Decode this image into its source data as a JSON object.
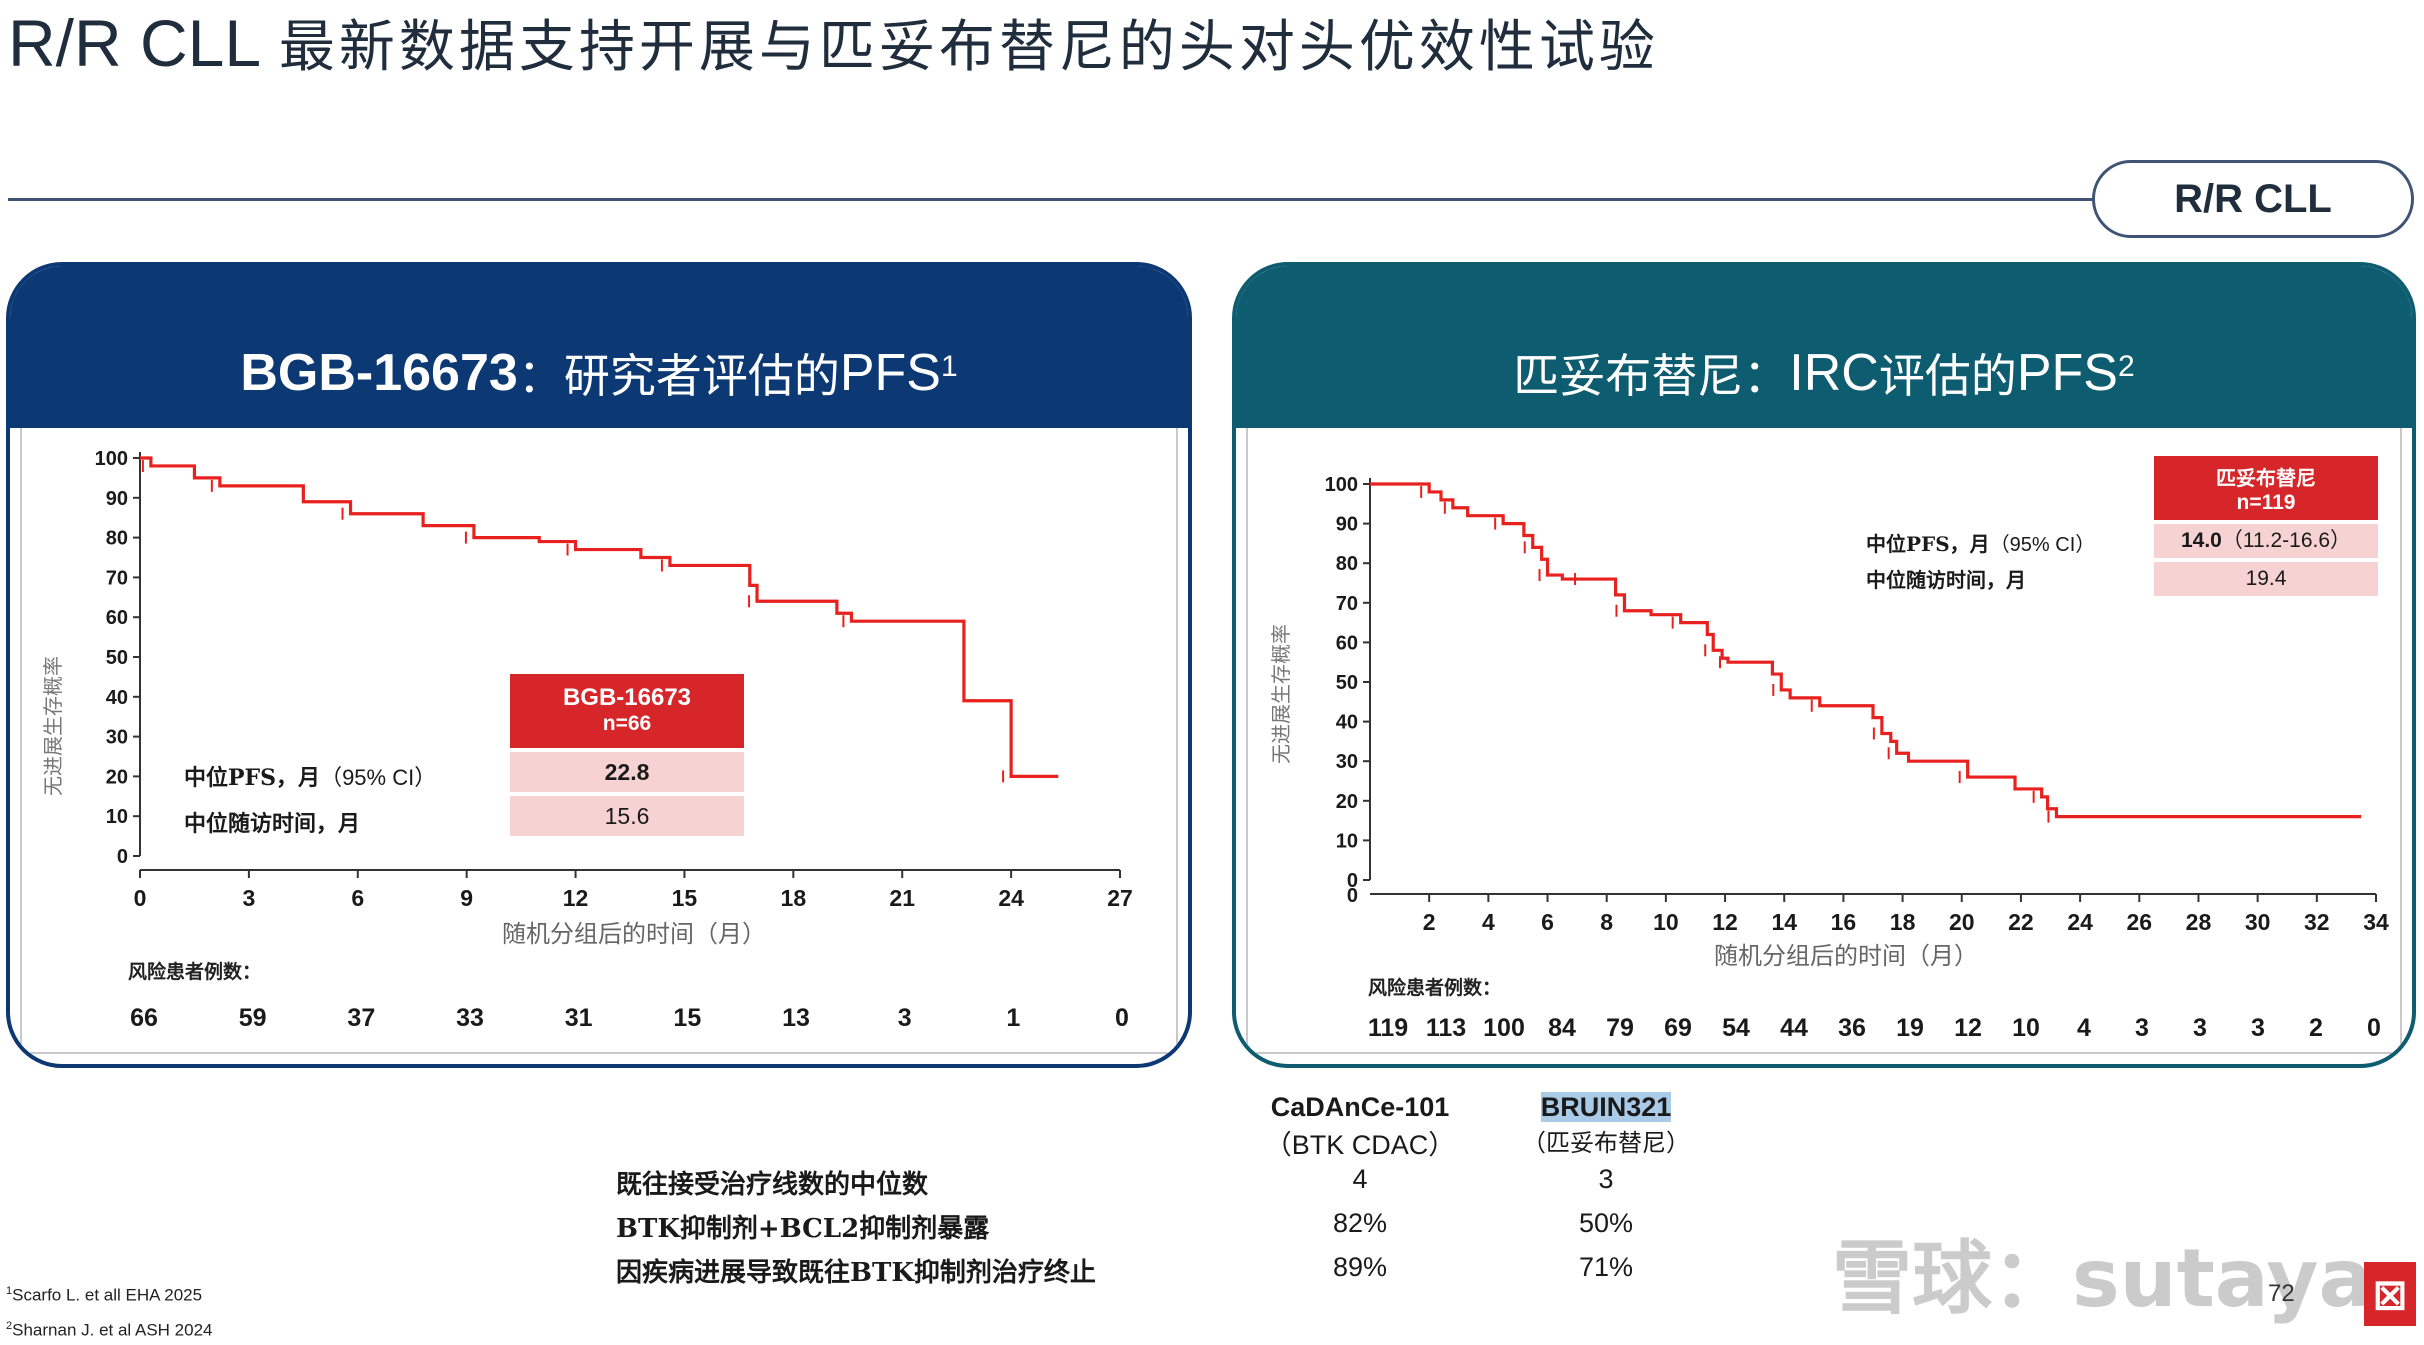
{
  "title": {
    "en": "R/R CLL",
    "zh": "最新数据支持开展与匹妥布替尼的头对头优效性试验"
  },
  "tag": "R/R CLL",
  "left_panel": {
    "heading_bold": "BGB-16673",
    "heading_sep": "：",
    "heading_zh": "研究者评估的",
    "heading_pfs": "PFS",
    "heading_sup": "1",
    "table_header_line1": "BGB-16673",
    "table_header_line2": "n=66",
    "row1_label_zh": "中位PFS，月",
    "row1_label_ci": "（95% CI）",
    "row1_value": "22.8",
    "row2_label": "中位随访时间，月",
    "row2_value": "15.6",
    "risk_label": "风险患者例数：",
    "risk_values": [
      "66",
      "59",
      "37",
      "33",
      "31",
      "15",
      "13",
      "3",
      "1",
      "0"
    ]
  },
  "right_panel": {
    "heading_zh": "匹妥布替尼",
    "heading_sep": "：",
    "heading_irc": "IRC",
    "heading_zh2": "评估的",
    "heading_pfs": "PFS",
    "heading_sup": "2",
    "table_header_line1": "匹妥布替尼",
    "table_header_line2": "n=119",
    "row1_label_zh": "中位PFS，月",
    "row1_label_ci": "（95% CI）",
    "row1_value_bold": "14.0",
    "row1_value_ci": "（11.2-16.6）",
    "row2_label": "中位随访时间，月",
    "row2_value": "19.4",
    "risk_label": "风险患者例数：",
    "risk_values": [
      "119",
      "113",
      "100",
      "84",
      "79",
      "69",
      "54",
      "44",
      "36",
      "19",
      "12",
      "10",
      "4",
      "3",
      "3",
      "3",
      "2",
      "0"
    ]
  },
  "comparison": {
    "col1_name": "CaDAnCe-101",
    "col1_sub": "（BTK CDAC）",
    "col2_name": "BRUIN321",
    "col2_sub": "（匹妥布替尼）",
    "rows": [
      {
        "label": "既往接受治疗线数的中位数",
        "v1": "4",
        "v2": "3"
      },
      {
        "label": "BTK抑制剂+BCL2抑制剂暴露",
        "v1": "82%",
        "v2": "50%"
      },
      {
        "label": "因疾病进展导致既往BTK抑制剂治疗终止",
        "v1": "89%",
        "v2": "71%"
      }
    ]
  },
  "references": {
    "ref1_sup": "1",
    "ref1": "Scarfo L. et all EHA 2025",
    "ref2_sup": "2",
    "ref2": "Sharnan J. et al ASH 2024"
  },
  "page_number": "72",
  "watermark": "雪球：sutaya",
  "colors": {
    "navy": "#0c3873",
    "teal": "#0e5c70",
    "curve_red": "#e8211e",
    "table_red": "#d6262a",
    "table_pink": "#f7d2d3",
    "rule": "#3f5475"
  },
  "chart_data": [
    {
      "type": "line",
      "step": true,
      "title": "BGB-16673：研究者评估的PFS",
      "xlabel": "随机分组后的时间（月）",
      "ylabel": "无进展生存概率",
      "xlim": [
        0,
        27
      ],
      "ylim": [
        0,
        100
      ],
      "x_ticks": [
        0,
        3,
        6,
        9,
        12,
        15,
        18,
        21,
        24,
        27
      ],
      "y_ticks": [
        0,
        10,
        20,
        30,
        40,
        50,
        60,
        70,
        80,
        90,
        100
      ],
      "grid": false,
      "series": [
        {
          "name": "BGB-16673",
          "x": [
            0,
            0.3,
            1.5,
            2.2,
            4.5,
            5.8,
            7.8,
            9.2,
            11.0,
            12.0,
            13.8,
            14.6,
            16.8,
            17.0,
            19.2,
            19.6,
            22.7,
            24.0,
            25.3
          ],
          "y": [
            100,
            98,
            95,
            93,
            89,
            86,
            83,
            80,
            79,
            77,
            75,
            73,
            68,
            64,
            61,
            59,
            39,
            20,
            20
          ]
        }
      ]
    },
    {
      "type": "line",
      "step": true,
      "title": "匹妥布替尼：IRC评估的PFS",
      "xlabel": "随机分组后的时间（月）",
      "ylabel": "无进展生存概率",
      "xlim": [
        0,
        34
      ],
      "ylim": [
        0,
        100
      ],
      "x_ticks": [
        2,
        4,
        6,
        8,
        10,
        12,
        14,
        16,
        18,
        20,
        22,
        24,
        26,
        28,
        30,
        32,
        34
      ],
      "y_ticks": [
        0,
        10,
        20,
        30,
        40,
        50,
        60,
        70,
        80,
        90,
        100
      ],
      "grid": false,
      "series": [
        {
          "name": "匹妥布替尼",
          "x": [
            0,
            2.0,
            2.4,
            2.8,
            3.3,
            4.5,
            5.2,
            5.5,
            5.8,
            6.0,
            6.5,
            7.2,
            8.3,
            8.6,
            9.5,
            10.5,
            11.4,
            11.6,
            11.9,
            12.1,
            13.6,
            13.9,
            14.2,
            15.2,
            17.0,
            17.3,
            17.6,
            17.8,
            18.2,
            20.2,
            21.8,
            22.7,
            22.9,
            23.2,
            33.5
          ],
          "y": [
            100,
            98,
            96,
            94,
            92,
            90,
            87,
            84,
            81,
            77,
            76,
            76,
            72,
            68,
            67,
            65,
            62,
            58,
            56,
            55,
            52,
            48,
            46,
            44,
            41,
            37,
            35,
            32,
            30,
            26,
            23,
            21,
            18,
            16,
            16
          ]
        }
      ]
    }
  ]
}
